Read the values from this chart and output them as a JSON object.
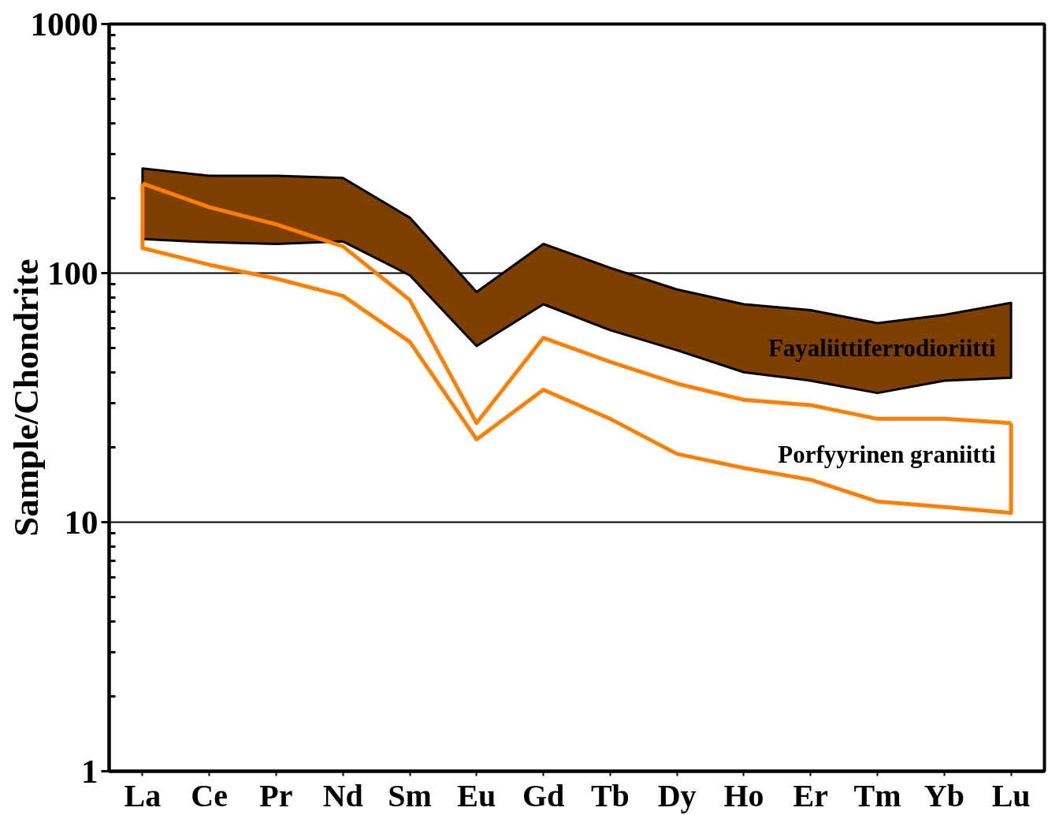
{
  "chart_data": {
    "type": "area",
    "ylabel": "Sample/Chondrite",
    "categories": [
      "La",
      "Ce",
      "Pr",
      "Nd",
      "Sm",
      "Eu",
      "Gd",
      "Tb",
      "Dy",
      "Ho",
      "Er",
      "Tm",
      "Yb",
      "Lu"
    ],
    "series": [
      {
        "color": "#7f3f00",
        "values": [
          null,
          null,
          null,
          null,
          null,
          null,
          null,
          null,
          null,
          null,
          null,
          null,
          null,
          null
        ],
        "upper": [
          263,
          246,
          246,
          241,
          167,
          84,
          131,
          105,
          86,
          75,
          71,
          63,
          68,
          76
        ],
        "lower": [
          137,
          133,
          131,
          134,
          98,
          51,
          75,
          59,
          49,
          40,
          37,
          33,
          37,
          38
        ]
      },
      {
        "name": "Porfyyrinen graniitti",
        "type": "line",
        "color": "#ff8000",
        "values": [
          229,
          184,
          157,
          128,
          78,
          25,
          55,
          44,
          36,
          31,
          29.5,
          26,
          26,
          25
        ]
      },
      {
        "type": "line",
        "color": "#ff8000",
        "x": [
          "La",
          "La",
          "Ce",
          "Pr",
          "Nd",
          "Sm",
          "Eu",
          "Gd",
          "Tb",
          "Dy",
          "Ho",
          "Er",
          "Tm",
          "Yb",
          "Lu",
          "Lu"
        ],
        "values": [
          229,
          126,
          108,
          95,
          81,
          53,
          21.5,
          34,
          26,
          18.8,
          16.5,
          14.8,
          12.1,
          11.5,
          10.9,
          25
        ]
      }
    ],
    "annotations": [
      "Fayaliittiferrodioriitti"
    ],
    "log": "y",
    "ylim": [
      1,
      1000
    ],
    "yticks": [
      1,
      10,
      100,
      1000
    ],
    "grid": "y"
  }
}
